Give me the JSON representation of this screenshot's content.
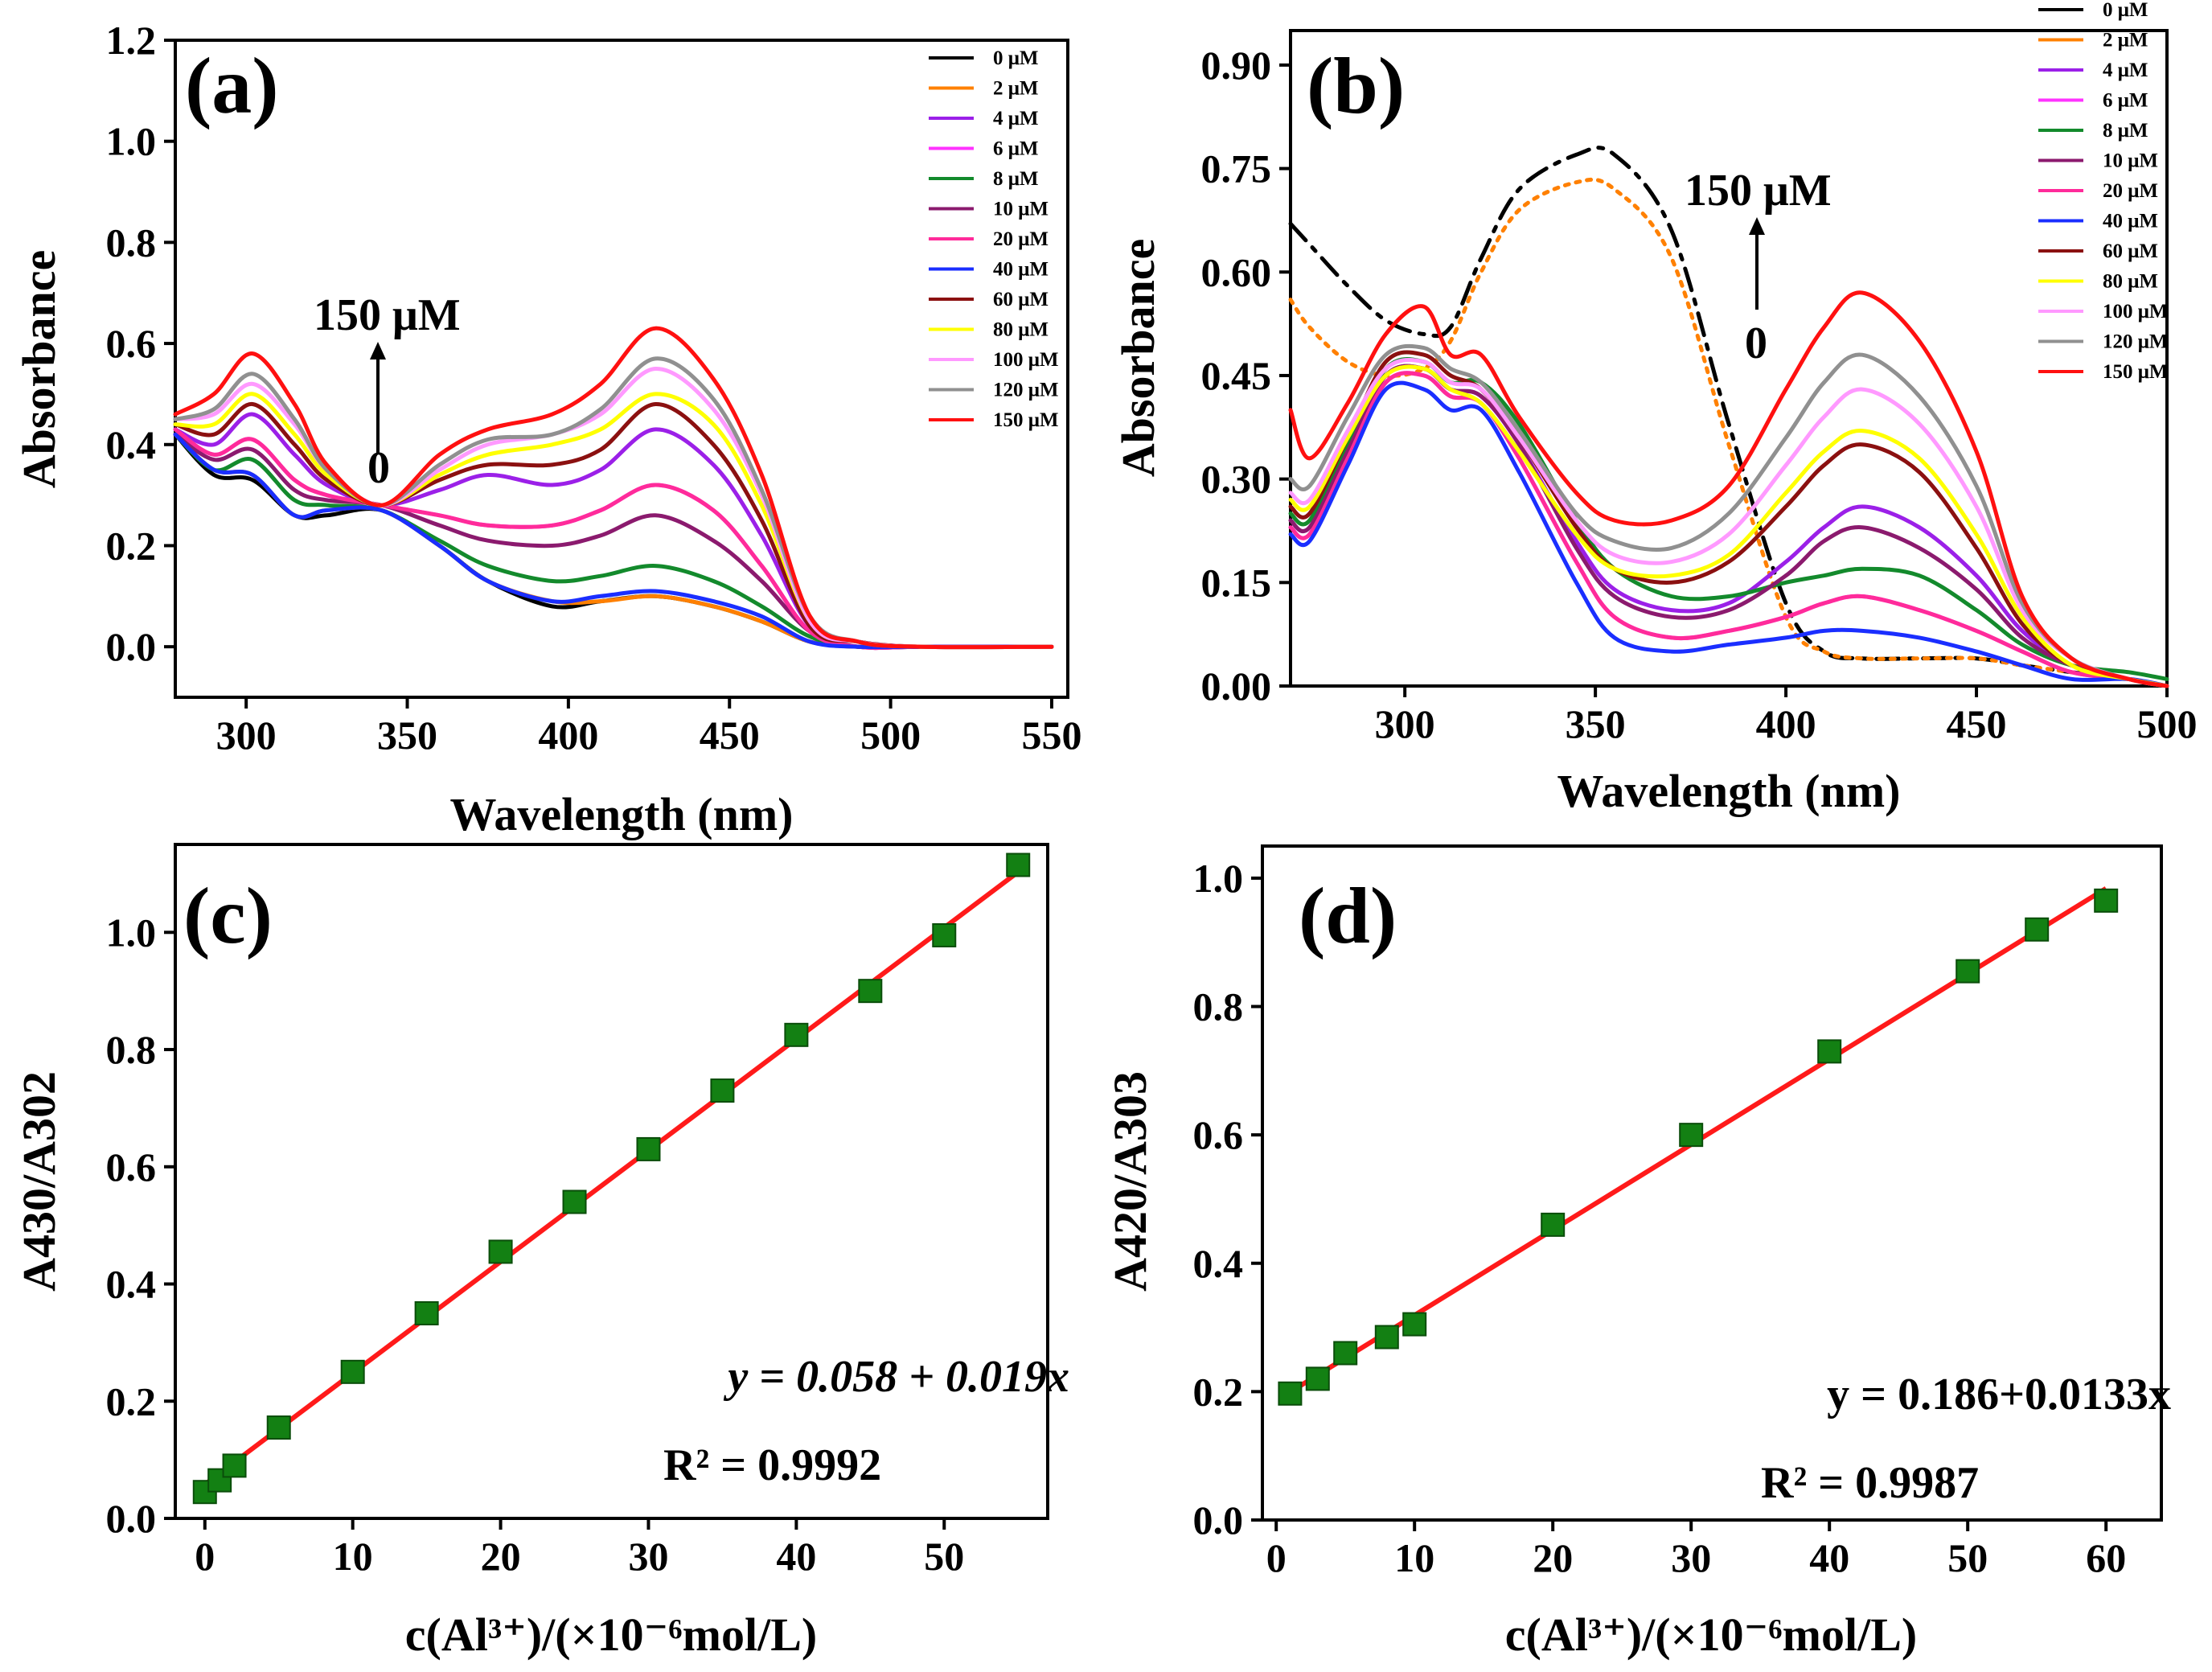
{
  "colors": {
    "0 μM": "#000000",
    "2 μM": "#ff8000",
    "4 μM": "#9b20e8",
    "6 μM": "#ff33ff",
    "8 μM": "#138a2c",
    "10 μM": "#8b1a6e",
    "20 μM": "#ff2b9a",
    "40 μM": "#1a2eff",
    "60 μM": "#8b1010",
    "80 μM": "#ffff00",
    "100 μM": "#ff99ff",
    "120 μM": "#909090",
    "150 μM": "#ff1010",
    "fit": "#ff1a1a",
    "marker": "#138013"
  },
  "chart_data": [
    {
      "id": "a",
      "type": "line",
      "panel_label": "(a)",
      "xlabel": "Wavelength (nm)",
      "ylabel": "Absorbance",
      "xlim": [
        278,
        555
      ],
      "ylim": [
        -0.1,
        1.2
      ],
      "xticks": [
        "300",
        "350",
        "400",
        "450",
        "500",
        "550"
      ],
      "yticks": [
        "0.0",
        "0.2",
        "0.4",
        "0.6",
        "0.8",
        "1.0",
        "1.2"
      ],
      "legend": [
        "0 μM",
        "2 μM",
        "4 μM",
        "6 μM",
        "8 μM",
        "10 μM",
        "20 μM",
        "40 μM",
        "60 μM",
        "80 μM",
        "100 μM",
        "120 μM",
        "150 μM"
      ],
      "annotation_top": "150 μM",
      "annotation_bottom": "0",
      "x": [
        278,
        290,
        302,
        315,
        325,
        342,
        360,
        375,
        395,
        410,
        427,
        445,
        460,
        475,
        490,
        510,
        550
      ],
      "series": [
        {
          "name": "0 μM",
          "values": [
            0.42,
            0.34,
            0.33,
            0.26,
            0.26,
            0.27,
            0.2,
            0.13,
            0.08,
            0.09,
            0.1,
            0.08,
            0.05,
            0.01,
            0.0,
            0.0,
            0.0
          ]
        },
        {
          "name": "2 μM",
          "values": [
            0.42,
            0.35,
            0.34,
            0.26,
            0.27,
            0.27,
            0.2,
            0.13,
            0.09,
            0.09,
            0.1,
            0.08,
            0.05,
            0.01,
            0.0,
            0.0,
            0.0
          ]
        },
        {
          "name": "4 μM",
          "values": [
            0.43,
            0.4,
            0.46,
            0.38,
            0.32,
            0.28,
            0.31,
            0.34,
            0.32,
            0.35,
            0.43,
            0.36,
            0.22,
            0.04,
            0.01,
            0.0,
            0.0
          ]
        },
        {
          "name": "6 μM",
          "values": [
            0.43,
            0.38,
            0.41,
            0.33,
            0.3,
            0.28,
            0.26,
            0.24,
            0.24,
            0.27,
            0.32,
            0.27,
            0.16,
            0.03,
            0.0,
            0.0,
            0.0
          ]
        },
        {
          "name": "8 μM",
          "values": [
            0.42,
            0.35,
            0.37,
            0.29,
            0.28,
            0.27,
            0.21,
            0.16,
            0.13,
            0.14,
            0.16,
            0.13,
            0.08,
            0.02,
            0.0,
            0.0,
            0.0
          ]
        },
        {
          "name": "10 μM",
          "values": [
            0.42,
            0.37,
            0.39,
            0.31,
            0.29,
            0.28,
            0.24,
            0.21,
            0.2,
            0.22,
            0.26,
            0.21,
            0.13,
            0.03,
            0.0,
            0.0,
            0.0
          ]
        },
        {
          "name": "20 μM",
          "values": [
            0.43,
            0.38,
            0.41,
            0.33,
            0.3,
            0.28,
            0.26,
            0.24,
            0.24,
            0.27,
            0.32,
            0.27,
            0.16,
            0.03,
            0.0,
            0.0,
            0.0
          ]
        },
        {
          "name": "40 μM",
          "values": [
            0.42,
            0.35,
            0.34,
            0.26,
            0.27,
            0.27,
            0.2,
            0.13,
            0.09,
            0.1,
            0.11,
            0.09,
            0.06,
            0.01,
            0.0,
            0.0,
            0.0
          ]
        },
        {
          "name": "60 μM",
          "values": [
            0.44,
            0.42,
            0.48,
            0.4,
            0.33,
            0.28,
            0.33,
            0.36,
            0.36,
            0.39,
            0.48,
            0.4,
            0.25,
            0.04,
            0.01,
            0.0,
            0.0
          ]
        },
        {
          "name": "80 μM",
          "values": [
            0.44,
            0.44,
            0.5,
            0.42,
            0.34,
            0.28,
            0.34,
            0.38,
            0.4,
            0.43,
            0.5,
            0.44,
            0.28,
            0.05,
            0.01,
            0.0,
            0.0
          ]
        },
        {
          "name": "100 μM",
          "values": [
            0.45,
            0.46,
            0.52,
            0.44,
            0.35,
            0.28,
            0.35,
            0.4,
            0.42,
            0.46,
            0.55,
            0.47,
            0.3,
            0.05,
            0.01,
            0.0,
            0.0
          ]
        },
        {
          "name": "120 μM",
          "values": [
            0.45,
            0.47,
            0.54,
            0.45,
            0.35,
            0.28,
            0.36,
            0.41,
            0.42,
            0.47,
            0.57,
            0.49,
            0.31,
            0.06,
            0.01,
            0.0,
            0.0
          ]
        },
        {
          "name": "150 μM",
          "values": [
            0.46,
            0.5,
            0.58,
            0.48,
            0.36,
            0.28,
            0.38,
            0.43,
            0.46,
            0.52,
            0.63,
            0.53,
            0.34,
            0.06,
            0.01,
            0.0,
            0.0
          ]
        }
      ]
    },
    {
      "id": "b",
      "type": "line",
      "panel_label": "(b)",
      "xlabel": "Wavelength (nm)",
      "ylabel": "Absorbance",
      "xlim": [
        270,
        500
      ],
      "ylim": [
        0.0,
        0.95
      ],
      "xticks": [
        "300",
        "350",
        "400",
        "450",
        "500"
      ],
      "yticks": [
        "0.00",
        "0.15",
        "0.30",
        "0.45",
        "0.60",
        "0.75",
        "0.90"
      ],
      "legend": [
        "0 μM",
        "2 μM",
        "4 μM",
        "6 μM",
        "8 μM",
        "10 μM",
        "20 μM",
        "40 μM",
        "60 μM",
        "80 μM",
        "100 μM",
        "120 μM",
        "150 μM"
      ],
      "annotation_top": "150 μM",
      "annotation_bottom": "0",
      "x": [
        270,
        275,
        285,
        295,
        305,
        312,
        320,
        330,
        345,
        355,
        370,
        385,
        400,
        410,
        420,
        435,
        450,
        462,
        475,
        490,
        500
      ],
      "series": [
        {
          "name": "0 μM",
          "dash": "28,12,6,12",
          "values": [
            0.67,
            0.64,
            0.58,
            0.53,
            0.51,
            0.52,
            0.62,
            0.72,
            0.77,
            0.77,
            0.66,
            0.38,
            0.12,
            0.05,
            0.04,
            0.04,
            0.04,
            0.03,
            0.02,
            0.01,
            0.0
          ]
        },
        {
          "name": "2 μM",
          "dash": "5,9",
          "values": [
            0.56,
            0.52,
            0.47,
            0.45,
            0.46,
            0.5,
            0.6,
            0.69,
            0.73,
            0.72,
            0.62,
            0.35,
            0.1,
            0.05,
            0.04,
            0.04,
            0.04,
            0.03,
            0.02,
            0.01,
            0.0
          ]
        },
        {
          "name": "4 μM",
          "values": [
            0.24,
            0.23,
            0.34,
            0.45,
            0.46,
            0.43,
            0.42,
            0.35,
            0.21,
            0.14,
            0.11,
            0.12,
            0.18,
            0.23,
            0.26,
            0.23,
            0.16,
            0.08,
            0.03,
            0.01,
            0.0
          ]
        },
        {
          "name": "6 μM",
          "values": [
            0.23,
            0.22,
            0.33,
            0.44,
            0.45,
            0.42,
            0.41,
            0.33,
            0.18,
            0.1,
            0.07,
            0.08,
            0.1,
            0.12,
            0.13,
            0.11,
            0.08,
            0.05,
            0.02,
            0.01,
            0.0
          ]
        },
        {
          "name": "8 μM",
          "values": [
            0.25,
            0.24,
            0.35,
            0.46,
            0.47,
            0.44,
            0.44,
            0.38,
            0.24,
            0.17,
            0.13,
            0.13,
            0.15,
            0.16,
            0.17,
            0.16,
            0.11,
            0.06,
            0.03,
            0.02,
            0.01
          ]
        },
        {
          "name": "10 μM",
          "values": [
            0.24,
            0.23,
            0.34,
            0.45,
            0.46,
            0.43,
            0.42,
            0.35,
            0.2,
            0.13,
            0.1,
            0.11,
            0.16,
            0.21,
            0.23,
            0.2,
            0.14,
            0.07,
            0.03,
            0.01,
            0.0
          ]
        },
        {
          "name": "20 μM",
          "values": [
            0.23,
            0.22,
            0.33,
            0.44,
            0.45,
            0.42,
            0.41,
            0.33,
            0.18,
            0.1,
            0.07,
            0.08,
            0.1,
            0.12,
            0.13,
            0.11,
            0.08,
            0.05,
            0.02,
            0.01,
            0.0
          ]
        },
        {
          "name": "40 μM",
          "values": [
            0.22,
            0.21,
            0.32,
            0.43,
            0.43,
            0.4,
            0.4,
            0.31,
            0.15,
            0.07,
            0.05,
            0.06,
            0.07,
            0.08,
            0.08,
            0.07,
            0.05,
            0.03,
            0.01,
            0.01,
            0.0
          ]
        },
        {
          "name": "60 μM",
          "values": [
            0.26,
            0.25,
            0.36,
            0.47,
            0.48,
            0.45,
            0.43,
            0.36,
            0.23,
            0.17,
            0.15,
            0.18,
            0.26,
            0.32,
            0.35,
            0.31,
            0.2,
            0.09,
            0.03,
            0.01,
            0.0
          ]
        },
        {
          "name": "80 μM",
          "values": [
            0.27,
            0.26,
            0.36,
            0.45,
            0.46,
            0.43,
            0.41,
            0.34,
            0.22,
            0.17,
            0.16,
            0.19,
            0.28,
            0.34,
            0.37,
            0.33,
            0.22,
            0.1,
            0.03,
            0.01,
            0.0
          ]
        },
        {
          "name": "100 μM",
          "values": [
            0.28,
            0.27,
            0.37,
            0.46,
            0.47,
            0.44,
            0.43,
            0.36,
            0.24,
            0.19,
            0.18,
            0.22,
            0.32,
            0.39,
            0.43,
            0.38,
            0.26,
            0.11,
            0.04,
            0.01,
            0.0
          ]
        },
        {
          "name": "120 μM",
          "values": [
            0.3,
            0.29,
            0.39,
            0.48,
            0.49,
            0.46,
            0.44,
            0.37,
            0.25,
            0.21,
            0.2,
            0.25,
            0.36,
            0.44,
            0.48,
            0.42,
            0.29,
            0.12,
            0.04,
            0.01,
            0.0
          ]
        },
        {
          "name": "150 μM",
          "values": [
            0.4,
            0.33,
            0.41,
            0.51,
            0.55,
            0.48,
            0.48,
            0.39,
            0.28,
            0.24,
            0.24,
            0.29,
            0.43,
            0.52,
            0.57,
            0.5,
            0.34,
            0.13,
            0.04,
            0.01,
            0.0
          ]
        }
      ]
    },
    {
      "id": "c",
      "type": "scatter",
      "panel_label": "(c)",
      "xlabel": "c(Al³⁺)/(×10⁻⁶mol/L)",
      "ylabel": "A430/A302",
      "xlim": [
        -2,
        57
      ],
      "ylim": [
        0.0,
        1.15
      ],
      "xticks": [
        "0",
        "10",
        "20",
        "30",
        "40",
        "50"
      ],
      "yticks": [
        "0.0",
        "0.2",
        "0.4",
        "0.6",
        "0.8",
        "1.0"
      ],
      "x": [
        0,
        1,
        2,
        5,
        10,
        15,
        20,
        25,
        30,
        35,
        40,
        45,
        50,
        55
      ],
      "y": [
        0.045,
        0.065,
        0.09,
        0.155,
        0.25,
        0.35,
        0.455,
        0.54,
        0.63,
        0.73,
        0.825,
        0.9,
        0.995,
        1.115
      ],
      "fit": {
        "intercept": 0.058,
        "slope": 0.019,
        "x_range": [
          0,
          55
        ]
      },
      "equation": "y = 0.058 + 0.019x",
      "r2": "R² = 0.9992"
    },
    {
      "id": "d",
      "type": "scatter",
      "panel_label": "(d)",
      "xlabel": "c(Al³⁺)/(×10⁻⁶mol/L)",
      "ylabel": "A420/A303",
      "xlim": [
        -1,
        64
      ],
      "ylim": [
        0.0,
        1.05
      ],
      "xticks": [
        "0",
        "10",
        "20",
        "30",
        "40",
        "50",
        "60"
      ],
      "yticks": [
        "0.0",
        "0.2",
        "0.4",
        "0.6",
        "0.8",
        "1.0"
      ],
      "x": [
        1,
        3,
        5,
        8,
        10,
        20,
        30,
        40,
        50,
        55,
        60
      ],
      "y": [
        0.197,
        0.22,
        0.26,
        0.285,
        0.305,
        0.46,
        0.6,
        0.73,
        0.855,
        0.92,
        0.965
      ],
      "fit": {
        "intercept": 0.186,
        "slope": 0.0133,
        "x_range": [
          1,
          60
        ]
      },
      "equation": "y = 0.186+0.0133x",
      "r2": "R² = 0.9987"
    }
  ]
}
